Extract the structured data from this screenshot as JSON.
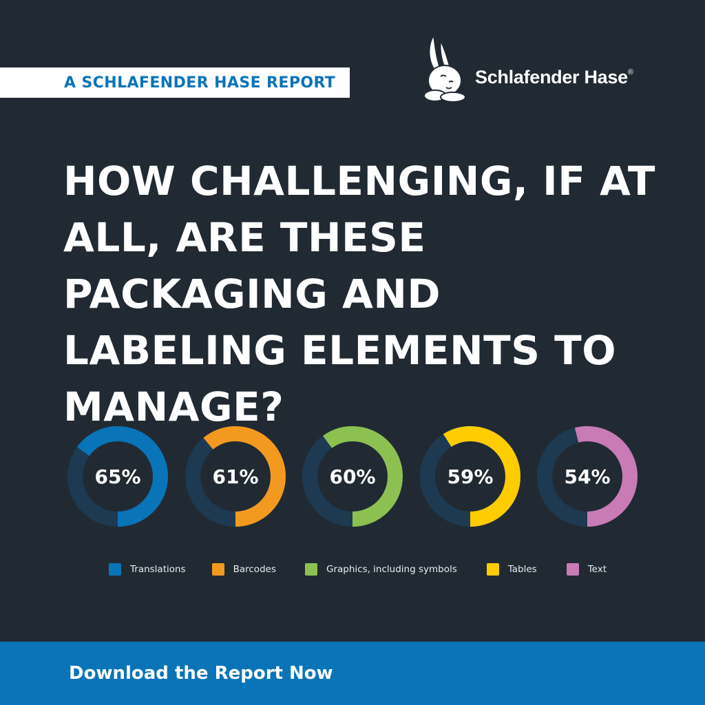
{
  "banner": {
    "label": "A SCHLAFENDER HASE REPORT"
  },
  "logo": {
    "brand": "Schlafender Hase",
    "registered_mark": "®"
  },
  "headline": "HOW CHALLENGING, IF AT ALL, ARE THESE PACKAGING AND LABELING ELEMENTS TO MANAGE?",
  "chart_data": {
    "type": "pie",
    "style": "donut",
    "categories": [
      "Translations",
      "Barcodes",
      "Graphics, including symbols",
      "Tables",
      "Text"
    ],
    "values": [
      65,
      61,
      60,
      59,
      54
    ],
    "labels": [
      "65%",
      "61%",
      "60%",
      "59%",
      "54%"
    ],
    "colors": [
      "#0a74b8",
      "#f29a1f",
      "#8cc152",
      "#ffcc00",
      "#c97bb6"
    ],
    "track_color": "#1d3a52",
    "legend_position": "bottom"
  },
  "cta": {
    "label": "Download the Report Now"
  },
  "colors": {
    "background": "#212a33",
    "accent": "#0a74b8"
  }
}
